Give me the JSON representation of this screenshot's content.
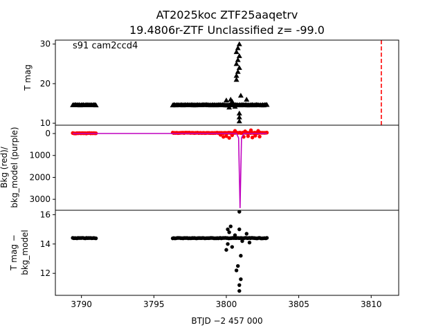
{
  "figure": {
    "title_line1": "AT2025koc  ZTF25aaqetrv",
    "title_line2": "19.4806r-ZTF Unclassified z= -99.0",
    "annotation": "s91 cam2ccd4"
  },
  "chart_data": [
    {
      "type": "scatter",
      "panel": "top",
      "ylabel": "T mag",
      "xlim": [
        3788.2,
        3811.9
      ],
      "ylim": [
        31,
        9.5
      ],
      "inverted_y": true,
      "yticks": [
        10,
        20,
        30
      ],
      "grid": false,
      "series": [
        {
          "marker": "triangle",
          "color": "#000000",
          "segments": [
            {
              "x_start": 3789.4,
              "x_end": 3791.0,
              "y": 14.6
            },
            {
              "x_start": 3796.3,
              "x_end": 3802.8,
              "y": 14.6
            }
          ],
          "extra_points": [
            [
              3800.0,
              15.8
            ],
            [
              3800.2,
              14.0
            ],
            [
              3800.3,
              16.0
            ],
            [
              3800.4,
              15.5
            ],
            [
              3800.6,
              14.2
            ],
            [
              3800.9,
              10.5
            ],
            [
              3800.9,
              11.5
            ],
            [
              3800.9,
              12.5
            ],
            [
              3801.0,
              17.0
            ],
            [
              3801.4,
              16.0
            ],
            [
              3800.7,
              21.0
            ],
            [
              3800.7,
              22.0
            ],
            [
              3800.8,
              23.0
            ],
            [
              3800.9,
              24.0
            ],
            [
              3800.7,
              25.0
            ],
            [
              3800.8,
              26.0
            ],
            [
              3800.9,
              27.0
            ],
            [
              3800.7,
              28.0
            ],
            [
              3800.8,
              29.0
            ],
            [
              3800.9,
              30.0
            ]
          ]
        }
      ],
      "vline": {
        "x": 3810.7,
        "color": "#ff0000",
        "style": "dashed"
      }
    },
    {
      "type": "line",
      "panel": "middle",
      "ylabel_line1": "Bkg (red)/",
      "ylabel_line2": "bkg_model (purple)",
      "xlim": [
        3788.2,
        3811.9
      ],
      "ylim": [
        -380,
        3500
      ],
      "yticks": [
        0,
        1000,
        2000,
        3000
      ],
      "grid": false,
      "series": [
        {
          "marker": "circle",
          "color": "#ff0000",
          "segments": [
            {
              "x_start": 3789.4,
              "x_end": 3791.0,
              "y": -10
            },
            {
              "x_start": 3796.3,
              "x_end": 3802.8,
              "y": -30
            }
          ],
          "extra_points": [
            [
              3799.6,
              60
            ],
            [
              3799.8,
              150
            ],
            [
              3800.0,
              120
            ],
            [
              3800.2,
              200
            ],
            [
              3800.4,
              80
            ],
            [
              3801.2,
              150
            ],
            [
              3801.5,
              120
            ],
            [
              3801.8,
              180
            ],
            [
              3802.0,
              100
            ],
            [
              3802.3,
              140
            ],
            [
              3800.6,
              -120
            ],
            [
              3801.3,
              -100
            ],
            [
              3801.7,
              -150
            ],
            [
              3802.2,
              -120
            ]
          ]
        },
        {
          "marker": "line",
          "color": "#bf00bf",
          "points": [
            [
              3789.4,
              0
            ],
            [
              3791.0,
              0
            ],
            [
              3796.3,
              0
            ],
            [
              3800.7,
              0
            ],
            [
              3800.85,
              200
            ],
            [
              3800.95,
              3400
            ],
            [
              3801.05,
              200
            ],
            [
              3801.2,
              0
            ],
            [
              3802.8,
              0
            ]
          ]
        }
      ]
    },
    {
      "type": "scatter",
      "panel": "bottom",
      "ylabel_line1": "T mag −",
      "ylabel_line2": "bkg_model",
      "xlabel": "BTJD −2 457 000",
      "xlim": [
        3788.2,
        3811.9
      ],
      "ylim": [
        16.3,
        10.5
      ],
      "inverted_y": true,
      "xticks": [
        3790,
        3795,
        3800,
        3805,
        3810
      ],
      "yticks": [
        12,
        14,
        16
      ],
      "grid": false,
      "series": [
        {
          "marker": "circle",
          "color": "#000000",
          "segments": [
            {
              "x_start": 3789.4,
              "x_end": 3791.0,
              "y": 14.4
            },
            {
              "x_start": 3796.3,
              "x_end": 3802.8,
              "y": 14.4
            }
          ],
          "extra_points": [
            [
              3800.9,
              10.8
            ],
            [
              3800.9,
              11.2
            ],
            [
              3801.0,
              11.6
            ],
            [
              3800.7,
              12.2
            ],
            [
              3800.8,
              12.5
            ],
            [
              3800.0,
              13.6
            ],
            [
              3800.1,
              14.0
            ],
            [
              3800.2,
              14.8
            ],
            [
              3800.3,
              15.2
            ],
            [
              3800.4,
              13.8
            ],
            [
              3800.6,
              14.6
            ],
            [
              3800.9,
              15.0
            ],
            [
              3801.1,
              14.2
            ],
            [
              3801.4,
              14.7
            ],
            [
              3801.6,
              14.1
            ],
            [
              3800.9,
              16.2
            ],
            [
              3800.1,
              15.0
            ],
            [
              3801.0,
              13.2
            ]
          ]
        }
      ]
    }
  ]
}
